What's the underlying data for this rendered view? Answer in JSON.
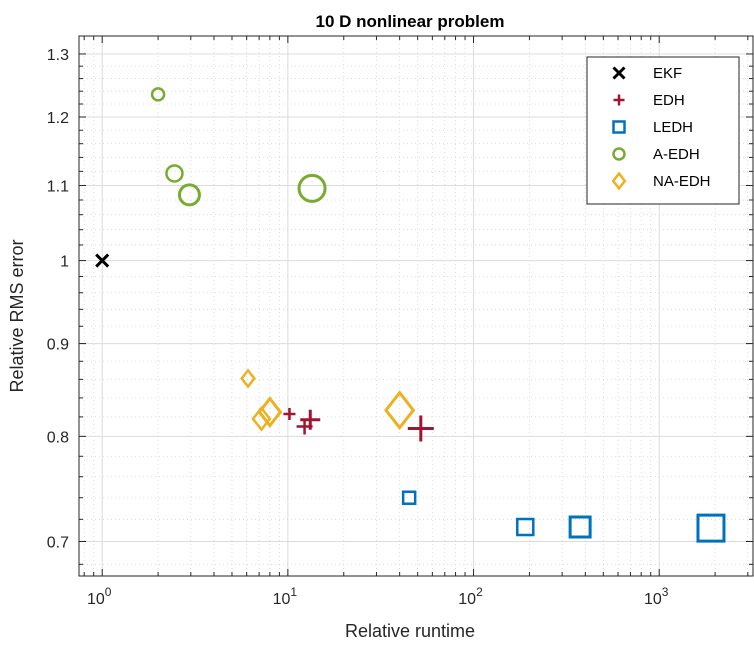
{
  "chart_data": {
    "type": "scatter",
    "title": "10 D nonlinear problem",
    "xlabel": "Relative runtime",
    "ylabel": "Relative RMS error",
    "xscale": "log",
    "yscale": "log",
    "xlim": [
      0.75,
      3200
    ],
    "ylim": [
      0.67,
      1.33
    ],
    "grid": true,
    "minor_grid": true,
    "legend_position": "top-right",
    "x_tick_labels": [
      {
        "base": "10",
        "exp": "0",
        "value": 1
      },
      {
        "base": "10",
        "exp": "1",
        "value": 10
      },
      {
        "base": "10",
        "exp": "2",
        "value": 100
      },
      {
        "base": "10",
        "exp": "3",
        "value": 1000
      }
    ],
    "y_tick_labels": [
      {
        "label": "0.7",
        "value": 0.7
      },
      {
        "label": "0.8",
        "value": 0.8
      },
      {
        "label": "0.9",
        "value": 0.9
      },
      {
        "label": "1",
        "value": 1.0
      },
      {
        "label": "1.1",
        "value": 1.1
      },
      {
        "label": "1.2",
        "value": 1.2
      },
      {
        "label": "1.3",
        "value": 1.3
      }
    ],
    "series": [
      {
        "name": "EKF",
        "marker": "x",
        "color": "#000000",
        "points": [
          {
            "x": 1.0,
            "y": 1.0,
            "size": 1
          }
        ]
      },
      {
        "name": "EDH",
        "marker": "plus",
        "color": "#a2142f",
        "points": [
          {
            "x": 10.2,
            "y": 0.823,
            "size": 1
          },
          {
            "x": 12.3,
            "y": 0.81,
            "size": 2
          },
          {
            "x": 13.2,
            "y": 0.817,
            "size": 3
          },
          {
            "x": 52.0,
            "y": 0.808,
            "size": 4
          }
        ]
      },
      {
        "name": "LEDH",
        "marker": "square",
        "color": "#0072bd",
        "points": [
          {
            "x": 45.0,
            "y": 0.74,
            "size": 1
          },
          {
            "x": 190.0,
            "y": 0.713,
            "size": 2
          },
          {
            "x": 375.0,
            "y": 0.713,
            "size": 3
          },
          {
            "x": 1900.0,
            "y": 0.712,
            "size": 4
          }
        ]
      },
      {
        "name": "A-EDH",
        "marker": "circle",
        "color": "#77ac30",
        "points": [
          {
            "x": 2.0,
            "y": 1.235,
            "size": 1
          },
          {
            "x": 2.45,
            "y": 1.117,
            "size": 2
          },
          {
            "x": 2.95,
            "y": 1.087,
            "size": 3
          },
          {
            "x": 13.5,
            "y": 1.096,
            "size": 4
          }
        ]
      },
      {
        "name": "NA-EDH",
        "marker": "diamond",
        "color": "#edb120",
        "points": [
          {
            "x": 6.1,
            "y": 0.861,
            "size": 1
          },
          {
            "x": 7.2,
            "y": 0.818,
            "size": 2
          },
          {
            "x": 8.0,
            "y": 0.825,
            "size": 3
          },
          {
            "x": 40.0,
            "y": 0.827,
            "size": 4
          }
        ]
      }
    ]
  }
}
